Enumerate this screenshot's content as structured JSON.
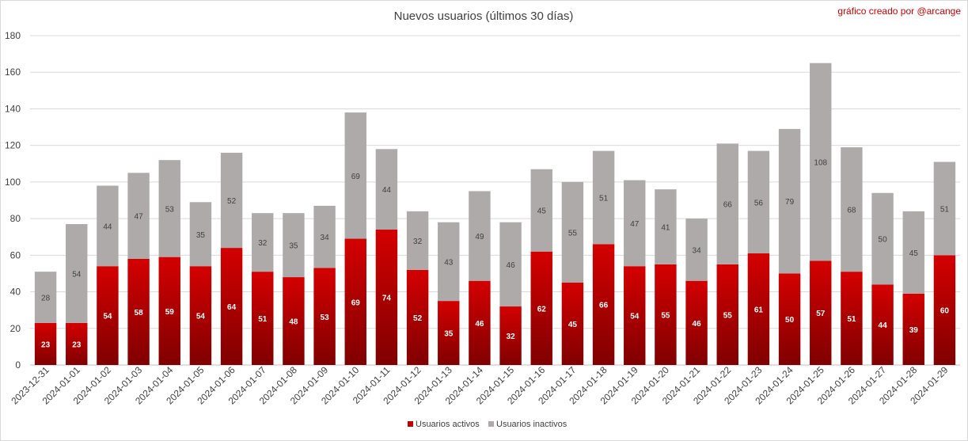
{
  "chart_data": {
    "type": "bar",
    "stacked": true,
    "title": "Nuevos usuarios (últimos 30 días)",
    "credit": "gráfico creado por @arcange",
    "xlabel": "",
    "ylabel": "",
    "ylim": [
      0,
      180
    ],
    "yticks": [
      0,
      20,
      40,
      60,
      80,
      100,
      120,
      140,
      160,
      180
    ],
    "grid": true,
    "legend_position": "bottom",
    "categories": [
      "2023-12-31",
      "2024-01-01",
      "2024-01-02",
      "2024-01-03",
      "2024-01-04",
      "2024-01-05",
      "2024-01-06",
      "2024-01-07",
      "2024-01-08",
      "2024-01-09",
      "2024-01-10",
      "2024-01-11",
      "2024-01-12",
      "2024-01-13",
      "2024-01-14",
      "2024-01-15",
      "2024-01-16",
      "2024-01-17",
      "2024-01-18",
      "2024-01-19",
      "2024-01-20",
      "2024-01-21",
      "2024-01-22",
      "2024-01-23",
      "2024-01-24",
      "2024-01-25",
      "2024-01-26",
      "2024-01-27",
      "2024-01-28",
      "2024-01-29"
    ],
    "series": [
      {
        "name": "Usuarios activos",
        "color": "#c00000",
        "values": [
          23,
          23,
          54,
          58,
          59,
          54,
          64,
          51,
          48,
          53,
          69,
          74,
          52,
          35,
          46,
          32,
          62,
          45,
          66,
          54,
          55,
          46,
          55,
          61,
          50,
          57,
          51,
          44,
          39,
          60
        ]
      },
      {
        "name": "Usuarios inactivos",
        "color": "#aeaaaa",
        "values": [
          28,
          54,
          44,
          47,
          53,
          35,
          52,
          32,
          35,
          34,
          69,
          44,
          32,
          43,
          49,
          46,
          45,
          55,
          51,
          47,
          41,
          34,
          66,
          56,
          79,
          108,
          68,
          50,
          45,
          51
        ]
      }
    ]
  }
}
